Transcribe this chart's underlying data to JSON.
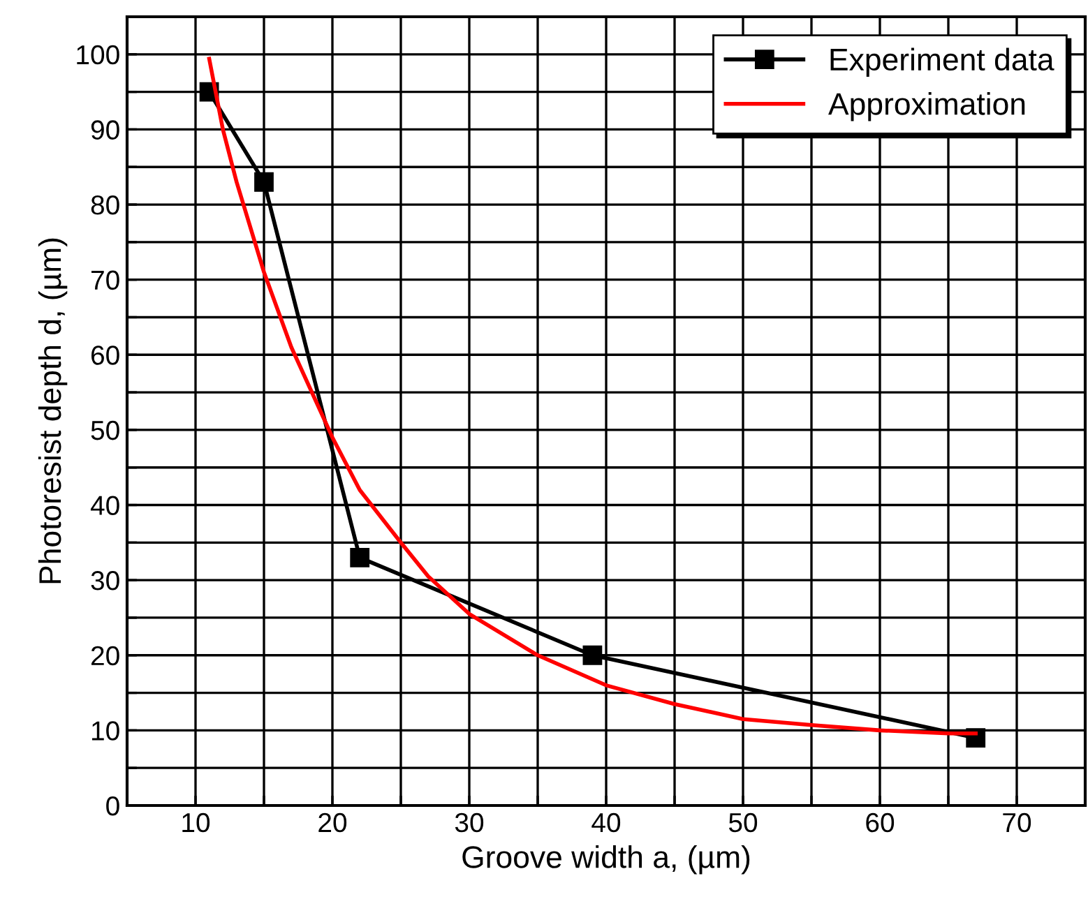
{
  "chart_data": {
    "type": "line",
    "xlabel": "Groove width a, (µm)",
    "ylabel": "Photoresist depth d, (µm)",
    "xlim": [
      5,
      75
    ],
    "ylim": [
      0,
      105
    ],
    "xticks": [
      {
        "value": 5,
        "label": null
      },
      10,
      {
        "value": 15,
        "label": null
      },
      20,
      {
        "value": 25,
        "label": null
      },
      30,
      {
        "value": 35,
        "label": null
      },
      40,
      {
        "value": 45,
        "label": null
      },
      50,
      {
        "value": 55,
        "label": null
      },
      60,
      {
        "value": 65,
        "label": null
      },
      70,
      {
        "value": 75,
        "label": null
      }
    ],
    "yticks": [
      0,
      {
        "value": 5,
        "label": null
      },
      10,
      {
        "value": 15,
        "label": null
      },
      20,
      {
        "value": 25,
        "label": null
      },
      30,
      {
        "value": 35,
        "label": null
      },
      40,
      {
        "value": 45,
        "label": null
      },
      50,
      {
        "value": 55,
        "label": null
      },
      60,
      {
        "value": 65,
        "label": null
      },
      70,
      {
        "value": 75,
        "label": null
      },
      80,
      {
        "value": 85,
        "label": null
      },
      90,
      {
        "value": 95,
        "label": null
      },
      100,
      {
        "value": 105,
        "label": null
      }
    ],
    "grid": true,
    "legend": "top right",
    "series": [
      {
        "name": "Experiment data",
        "color": "#000000",
        "marker": "square",
        "x": [
          11,
          15,
          22,
          39,
          67
        ],
        "values": [
          95,
          83,
          33,
          20,
          9
        ]
      },
      {
        "name": "Approximation",
        "color": "#ff0000",
        "marker": "none",
        "x": [
          11,
          12,
          13,
          15,
          17,
          20,
          22,
          25,
          27,
          30,
          35,
          40,
          45,
          50,
          55,
          60,
          65,
          67
        ],
        "values": [
          99.4,
          90,
          83,
          71,
          61,
          49,
          42,
          35,
          30.5,
          25.5,
          20,
          16,
          13.5,
          11.5,
          10.7,
          10,
          9.6,
          9.6
        ]
      }
    ]
  }
}
